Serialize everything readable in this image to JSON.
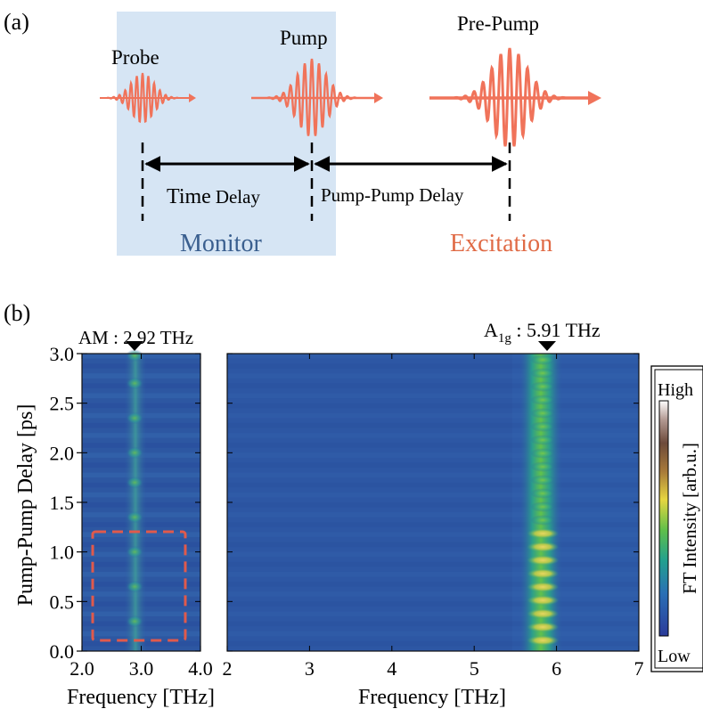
{
  "panel_a": {
    "label": "(a)",
    "pulses": {
      "probe": "Probe",
      "pump": "Pump",
      "prepump": "Pre-Pump"
    },
    "delays": {
      "time_delay_a": "Time",
      "time_delay_b": "Delay",
      "pump_pump": "Pump-Pump Delay"
    },
    "regions": {
      "monitor": "Monitor",
      "excitation": "Excitation"
    },
    "colors": {
      "pulse": "#f0735a",
      "monitor_box": "#d6e5f4",
      "monitor_text": "#3a5f8f",
      "excitation_text": "#e06a45"
    }
  },
  "panel_b": {
    "label": "(b)",
    "marker_am": "AM : 2.92 THz",
    "marker_a1g_main": "A",
    "marker_a1g_sub": "1g",
    "marker_a1g_rest": " : 5.91 THz",
    "colorbar": {
      "high": "High",
      "low": "Low",
      "label": "FT Intensity [arb.u.]"
    }
  },
  "chart_data": [
    {
      "type": "heatmap",
      "xlabel": "Frequency [THz]",
      "ylabel": "Pump-Pump Delay [ps]",
      "xlim": [
        2.0,
        4.0
      ],
      "ylim": [
        0.0,
        3.0
      ],
      "xticks": [
        "2.0",
        "3.0",
        "4.0"
      ],
      "yticks": [
        "0.0",
        "0.5",
        "1.0",
        "1.5",
        "2.0",
        "2.5",
        "3.0"
      ],
      "peak_frequency_THz": 2.92,
      "peak_label": "AM"
    },
    {
      "type": "heatmap",
      "xlabel": "Frequency [THz]",
      "xlim": [
        2,
        7
      ],
      "ylim": [
        0.0,
        3.0
      ],
      "xticks": [
        "2",
        "3",
        "4",
        "5",
        "6",
        "7"
      ],
      "peak_frequency_THz": 5.91,
      "peak_label": "A1g"
    }
  ]
}
